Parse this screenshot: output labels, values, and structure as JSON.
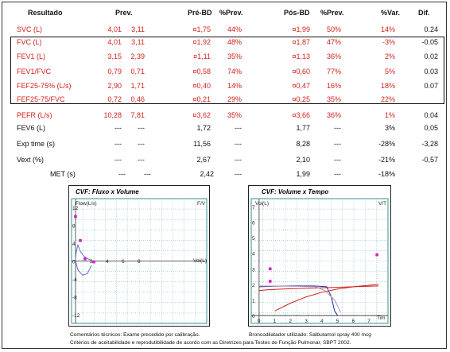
{
  "headers": {
    "resultado": "Resultado",
    "prev": "Prev.",
    "pre_bd": "Pré-BD",
    "pct_prev_pre": "%Prev.",
    "pos_bd": "Pós-BD",
    "pct_prev_pos": "%Prev.",
    "pct_var": "%Var.",
    "dif": "Dif."
  },
  "rows": [
    {
      "label": "SVC (L)",
      "result": "4,01",
      "prev": "3,11",
      "pre": "¤1,75",
      "pct_pre": "44%",
      "pos": "¤1,99",
      "pct_pos": "50%",
      "var": "14%",
      "dif": "0.24",
      "red": true
    },
    {
      "label": "FVC (L)",
      "result": "4,01",
      "prev": "3,11",
      "pre": "¤1,92",
      "pct_pre": "48%",
      "pos": "¤1,87",
      "pct_pos": "47%",
      "var": "-3%",
      "dif": "-0.05",
      "red": true
    },
    {
      "label": "FEV1 (L)",
      "result": "3,15",
      "prev": "2,39",
      "pre": "¤1,11",
      "pct_pre": "35%",
      "pos": "¤1,13",
      "pct_pos": "36%",
      "var": "2%",
      "dif": "0.02",
      "red": true
    },
    {
      "label": "FEV1/FVC",
      "result": "0,79",
      "prev": "0,71",
      "pre": "¤0,58",
      "pct_pre": "74%",
      "pos": "¤0,60",
      "pct_pos": "77%",
      "var": "5%",
      "dif": "0.03",
      "red": true
    },
    {
      "label": "FEF25-75% (L/s)",
      "result": "2,90",
      "prev": "1,71",
      "pre": "¤0,40",
      "pct_pre": "14%",
      "pos": "¤0,47",
      "pct_pos": "16%",
      "var": "18%",
      "dif": "0.07",
      "red": true
    },
    {
      "label": "FEF25-75/FVC",
      "result": "0,72",
      "prev": "0,46",
      "pre": "¤0,21",
      "pct_pre": "29%",
      "pos": "¤0,25",
      "pct_pos": "35%",
      "var": "22%",
      "dif": "",
      "red": true
    },
    {
      "label": "PEFR (L/s)",
      "result": "10,28",
      "prev": "7,81",
      "pre": "¤3,62",
      "pct_pre": "35%",
      "pos": "¤3,66",
      "pct_pos": "36%",
      "var": "1%",
      "dif": "0.04",
      "red": true
    },
    {
      "label": "FEV6 (L)",
      "result": "---",
      "prev": "---",
      "pre": "1,72",
      "pct_pre": "---",
      "pos": "1,77",
      "pct_pos": "---",
      "var": "3%",
      "dif": "0,05",
      "red": false
    },
    {
      "label": "Exp time (s)",
      "result": "---",
      "prev": "---",
      "pre": "11,56",
      "pct_pre": "---",
      "pos": "8,28",
      "pct_pos": "---",
      "var": "-28%",
      "dif": "-3,28",
      "red": false
    },
    {
      "label": "Vext (%)",
      "result": "---",
      "prev": "---",
      "pre": "2,67",
      "pct_pre": "---",
      "pos": "2,10",
      "pct_pos": "---",
      "var": "-21%",
      "dif": "-0,57",
      "red": false
    },
    {
      "label": "MET (s)",
      "result": "---",
      "prev": "---",
      "pre": "2,42",
      "pct_pre": "---",
      "pos": "1,99",
      "pct_pos": "---",
      "var": "-18%",
      "dif": "",
      "red": false
    }
  ],
  "chart_data": [
    {
      "type": "line",
      "title": "CVF: Fluxo x Volume",
      "ylabel": "Flow(L/s)",
      "xlabel": "Vol(L)",
      "corner_label": "F/V",
      "y_ticks": [
        "12",
        "8",
        "4",
        "0",
        "-4",
        "-8",
        "-12"
      ],
      "x_ticks": [
        "2",
        "4",
        "6",
        "8"
      ],
      "series": [
        {
          "color": "#6a6fc8",
          "points": [
            [
              0,
              0.5
            ],
            [
              0.1,
              2.2
            ],
            [
              0.3,
              3.6
            ],
            [
              0.6,
              2.2
            ],
            [
              1.0,
              1.2
            ],
            [
              1.4,
              0.6
            ],
            [
              1.8,
              0.3
            ],
            [
              2.0,
              0.1
            ]
          ]
        },
        {
          "color": "#6a6fc8",
          "points": [
            [
              0,
              0
            ],
            [
              0.3,
              -2.0
            ],
            [
              0.9,
              -3.2
            ],
            [
              1.5,
              -2.8
            ],
            [
              2.0,
              -1.0
            ]
          ]
        }
      ],
      "markers": [
        [
          0,
          10
        ],
        [
          0.6,
          4.6
        ],
        [
          1.2,
          0.5
        ],
        [
          2.3,
          -0.2
        ]
      ],
      "marker_color": "#d020c8"
    },
    {
      "type": "line",
      "title": "CVF: Volume x Tempo",
      "ylabel": "Vol(L)",
      "xlabel": "Tim",
      "corner_label": "V/T",
      "y_ticks": [
        "7",
        "6",
        "5",
        "4",
        "3",
        "2",
        "1",
        "0"
      ],
      "x_ticks": [
        "0",
        "1",
        "2",
        "3",
        "4",
        "5",
        "6",
        "7"
      ],
      "series": [
        {
          "color": "#d02020",
          "points": [
            [
              0,
              1.6
            ],
            [
              0.5,
              1.65
            ],
            [
              1.5,
              1.7
            ],
            [
              3,
              1.75
            ],
            [
              4.5,
              1.8
            ],
            [
              6,
              1.85
            ],
            [
              7.6,
              1.9
            ]
          ]
        },
        {
          "color": "#1a30b0",
          "points": [
            [
              0,
              1.85
            ],
            [
              1,
              1.88
            ],
            [
              2,
              1.9
            ],
            [
              3.5,
              1.9
            ],
            [
              4.3,
              1.85
            ],
            [
              4.6,
              1.2
            ],
            [
              4.8,
              0.3
            ],
            [
              5.0,
              0.0
            ]
          ]
        },
        {
          "color": "#d02020",
          "points": [
            [
              1,
              0.3
            ],
            [
              2,
              0.8
            ],
            [
              3,
              1.2
            ],
            [
              4,
              1.5
            ],
            [
              5,
              1.7
            ],
            [
              6,
              1.85
            ],
            [
              7.6,
              2.0
            ]
          ]
        },
        {
          "color": "#c090a0",
          "points": [
            [
              0,
              1.9
            ],
            [
              2,
              1.88
            ],
            [
              3.6,
              1.85
            ],
            [
              4.2,
              1.6
            ],
            [
              4.8,
              1.0
            ],
            [
              5.2,
              0.2
            ]
          ]
        }
      ],
      "markers": [
        [
          0.7,
          3.0
        ],
        [
          0.7,
          2.2
        ],
        [
          7.5,
          3.9
        ]
      ],
      "marker_color": "#d020c8"
    }
  ],
  "footer": {
    "line1": "Comentários técnicos: Exame precedido por calibração.",
    "line1b": "Broncodilatador utilizado: Salbutamol spray 400 mcg",
    "line2": "Critérios de aceitabilidade e reprodutibilidade de acordo com as Diretrizes para Testes de Função Pulmonar, SBPT 2002."
  }
}
